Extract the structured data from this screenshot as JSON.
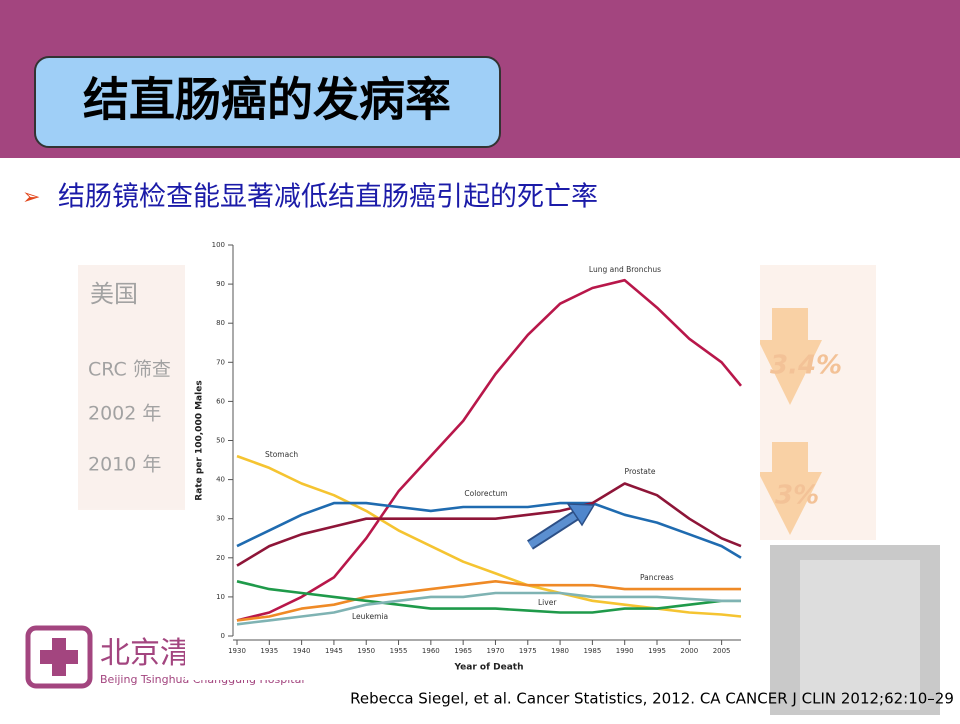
{
  "slide": {
    "title": "结直肠癌的发病率",
    "bullet": "结肠镜检查能显著减低结直肠癌引起的死亡率",
    "citation": "Rebecca Siegel, et al. Cancer Statistics, 2012. CA CANCER J CLIN 2012;62:10–29"
  },
  "background": {
    "country": "美国",
    "row_label": "CRC 筛查",
    "years": [
      "2002 年",
      "2010 年"
    ],
    "rates": [
      "3.4%",
      "3%"
    ]
  },
  "logo": {
    "name_cn": "北京清",
    "name_en": "Beijing Tsinghua Changgung Hospital"
  },
  "chart_data": {
    "type": "line",
    "x_label": "Year of Death",
    "y_label": "Rate per 100,000 Males",
    "x": [
      1930,
      1935,
      1940,
      1945,
      1950,
      1955,
      1960,
      1965,
      1970,
      1975,
      1980,
      1985,
      1990,
      1995,
      2000,
      2005,
      2008
    ],
    "xlim": [
      1930,
      2008
    ],
    "xticks": [
      1930,
      1935,
      1940,
      1945,
      1950,
      1955,
      1960,
      1965,
      1970,
      1975,
      1980,
      1985,
      1990,
      1995,
      2000,
      2005
    ],
    "ylim": [
      0,
      100
    ],
    "yticks": [
      0,
      10,
      20,
      30,
      40,
      50,
      60,
      70,
      80,
      90,
      100
    ],
    "series": [
      {
        "name": "Lung and Bronchus",
        "color": "#b8174a",
        "values": [
          4,
          6,
          10,
          15,
          25,
          37,
          46,
          55,
          67,
          77,
          85,
          89,
          91,
          84,
          76,
          70,
          64
        ]
      },
      {
        "name": "Stomach",
        "color": "#f5c431",
        "values": [
          46,
          43,
          39,
          36,
          32,
          27,
          23,
          19,
          16,
          13,
          11,
          9,
          8,
          7,
          6,
          5.5,
          5
        ]
      },
      {
        "name": "Colorectum",
        "color": "#1f6bb0",
        "values": [
          23,
          27,
          31,
          34,
          34,
          33,
          32,
          33,
          33,
          33,
          34,
          34,
          31,
          29,
          26,
          23,
          20
        ]
      },
      {
        "name": "Prostate",
        "color": "#8e1538",
        "values": [
          18,
          23,
          26,
          28,
          30,
          30,
          30,
          30,
          30,
          31,
          32,
          34,
          39,
          36,
          30,
          25,
          23
        ]
      },
      {
        "name": "Pancreas",
        "color": "#ef8a26",
        "values": [
          4,
          5,
          7,
          8,
          10,
          11,
          12,
          13,
          14,
          13,
          13,
          13,
          12,
          12,
          12,
          12,
          12
        ]
      },
      {
        "name": "Liver",
        "color": "#1f9a4a",
        "values": [
          14,
          12,
          11,
          10,
          9,
          8,
          7,
          7,
          7,
          6.5,
          6,
          6,
          7,
          7,
          8,
          9,
          9
        ]
      },
      {
        "name": "Leukemia",
        "color": "#7fb3b3",
        "values": [
          3,
          4,
          5,
          6,
          8,
          9,
          10,
          10,
          11,
          11,
          11,
          10,
          10,
          10,
          9.5,
          9,
          9
        ]
      }
    ]
  }
}
